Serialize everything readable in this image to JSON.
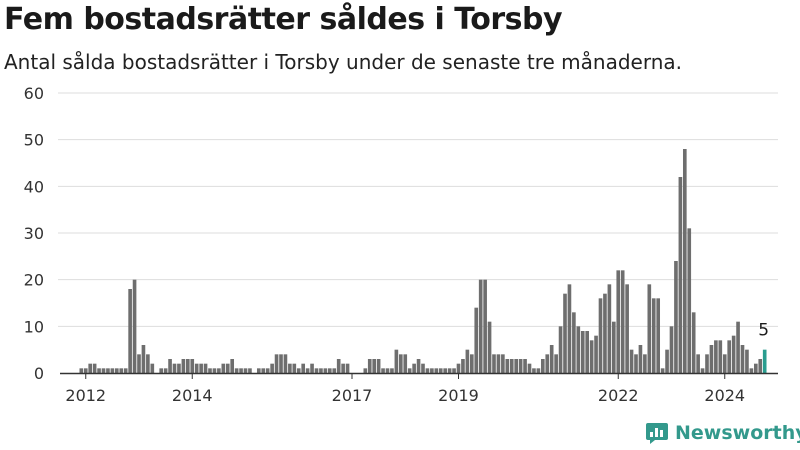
{
  "title": "Fem bostadsrätter såldes i Torsby",
  "subtitle": "Antal sålda bostadsrätter i Torsby under de senaste tre månaderna.",
  "brand": {
    "name": "Newsworthy",
    "color": "#33998c"
  },
  "colors": {
    "bar": "#6e6e6e",
    "highlight": "#2a9d8f",
    "grid": "#dddddd",
    "axis": "#333333"
  },
  "chart_data": {
    "type": "bar",
    "x_start": "2011-09",
    "x_end": "2025-01",
    "ylim": [
      0,
      60
    ],
    "yticks": [
      0,
      10,
      20,
      30,
      40,
      50,
      60
    ],
    "xticks": [
      "2012",
      "2014",
      "2017",
      "2019",
      "2022",
      "2024"
    ],
    "grid": true,
    "annotation": {
      "label": "5"
    },
    "highlight_last": true,
    "series": [
      {
        "start": "2011-12",
        "values": [
          1,
          1,
          2,
          2,
          1,
          1,
          1,
          1,
          1,
          1,
          1,
          18,
          20,
          4,
          6,
          4,
          2,
          0,
          1,
          1,
          3,
          2,
          2,
          3,
          3,
          3,
          2,
          2,
          2,
          1,
          1,
          1,
          2,
          2,
          3,
          1,
          1,
          1,
          1,
          0,
          1,
          1,
          1,
          2,
          4,
          4,
          4,
          2,
          2,
          1,
          2,
          1,
          2,
          1,
          1,
          1,
          1,
          1,
          3,
          2,
          2,
          0,
          0,
          0,
          1,
          3,
          3,
          3,
          1,
          1,
          1,
          5,
          4,
          4,
          1,
          2,
          3,
          2,
          1,
          1,
          1,
          1,
          1,
          1,
          1,
          2,
          3,
          5,
          4,
          14,
          20,
          20,
          11,
          4,
          4,
          4,
          3,
          3,
          3,
          3,
          3,
          2,
          1,
          1,
          3,
          4,
          6,
          4,
          10,
          17,
          19,
          13,
          10,
          9,
          9,
          7,
          8,
          16,
          17,
          19,
          11,
          22,
          22,
          19,
          5,
          4,
          6,
          4,
          19,
          16,
          16,
          1,
          5,
          10,
          24,
          42,
          48,
          31,
          13,
          4,
          1,
          4,
          6,
          7,
          7,
          4,
          7,
          8,
          11,
          6,
          5,
          1,
          2,
          3,
          5
        ]
      }
    ]
  }
}
